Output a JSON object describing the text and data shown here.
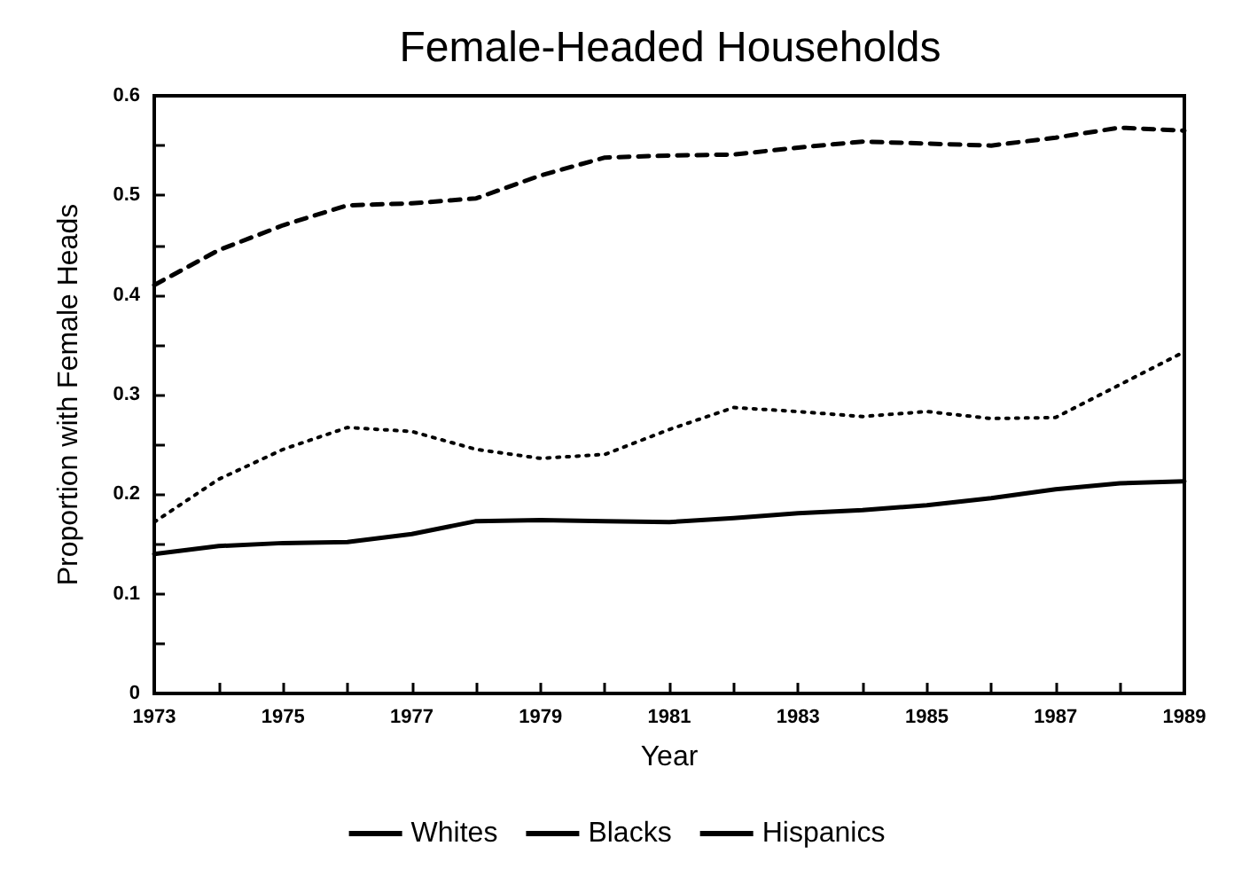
{
  "chart_data": {
    "type": "line",
    "title": "Female-Headed Households",
    "xlabel": "Year",
    "ylabel": "Proportion with Female Heads",
    "x": [
      1973,
      1974,
      1975,
      1976,
      1977,
      1978,
      1979,
      1980,
      1981,
      1982,
      1983,
      1984,
      1985,
      1986,
      1987,
      1988,
      1989
    ],
    "series": [
      {
        "name": "Whites",
        "color": "#000000",
        "line_style": "solid",
        "values": [
          0.14,
          0.148,
          0.151,
          0.152,
          0.16,
          0.173,
          0.174,
          0.173,
          0.172,
          0.176,
          0.181,
          0.184,
          0.189,
          0.196,
          0.205,
          0.211,
          0.213
        ]
      },
      {
        "name": "Blacks",
        "color": "#000000",
        "line_style": "dashed",
        "values": [
          0.41,
          0.445,
          0.47,
          0.49,
          0.492,
          0.497,
          0.52,
          0.538,
          0.54,
          0.541,
          0.548,
          0.554,
          0.552,
          0.55,
          0.558,
          0.568,
          0.565
        ]
      },
      {
        "name": "Hispanics",
        "color": "#000000",
        "line_style": "dotted",
        "values": [
          0.172,
          0.215,
          0.245,
          0.267,
          0.263,
          0.245,
          0.236,
          0.24,
          0.265,
          0.287,
          0.283,
          0.278,
          0.283,
          0.276,
          0.277,
          0.31,
          0.343
        ]
      }
    ],
    "xlim": [
      1973,
      1989
    ],
    "xticks": [
      1973,
      {
        "value": 1974,
        "label": null
      },
      1975,
      {
        "value": 1976,
        "label": null
      },
      1977,
      {
        "value": 1978,
        "label": null
      },
      1979,
      {
        "value": 1980,
        "label": null
      },
      1981,
      {
        "value": 1982,
        "label": null
      },
      1983,
      {
        "value": 1984,
        "label": null
      },
      1985,
      {
        "value": 1986,
        "label": null
      },
      1987,
      {
        "value": 1988,
        "label": null
      },
      1989
    ],
    "ylim": [
      0,
      0.6
    ],
    "yticks": [
      0,
      {
        "value": 0.05,
        "label": null
      },
      0.1,
      {
        "value": 0.15,
        "label": null
      },
      0.2,
      {
        "value": 0.25,
        "label": null
      },
      0.3,
      {
        "value": 0.35,
        "label": null
      },
      0.4,
      {
        "value": 0.45,
        "label": null
      },
      0.5,
      {
        "value": 0.55,
        "label": null
      },
      0.6
    ],
    "grid": false,
    "legend": "bottom",
    "marker": "none"
  }
}
